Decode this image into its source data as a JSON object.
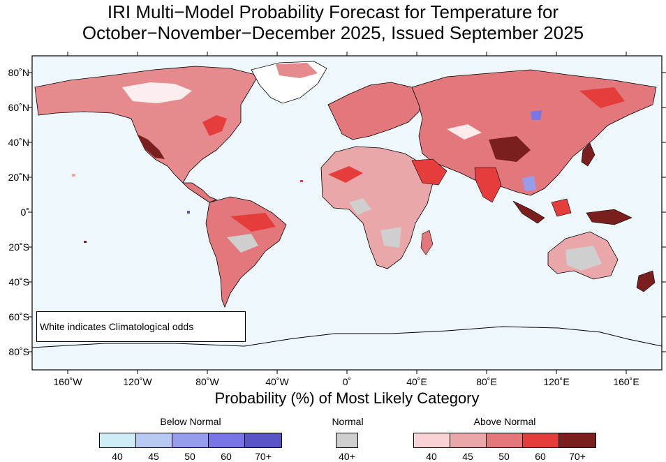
{
  "title": {
    "line1": "IRI Multi−Model Probability Forecast for Temperature for",
    "line2": "October−November−December 2025, Issued September 2025"
  },
  "axes": {
    "lat_labels": [
      "80˚N",
      "60˚N",
      "40˚N",
      "20˚N",
      "0˚",
      "20˚S",
      "40˚S",
      "60˚S",
      "80˚S"
    ],
    "lon_labels": [
      "160˚W",
      "120˚W",
      "80˚W",
      "40˚W",
      "0˚",
      "40˚E",
      "80˚E",
      "120˚E",
      "160˚E"
    ]
  },
  "note": "White indicates Climatological odds",
  "subtitle": "Probability (%) of Most Likely Category",
  "legend": {
    "below": {
      "label": "Below Normal",
      "ticks": [
        "40",
        "45",
        "50",
        "60",
        "70+"
      ],
      "colors": [
        "#cdeef7",
        "#b5c9f2",
        "#979cec",
        "#7876e4",
        "#5a55c6"
      ]
    },
    "normal": {
      "label": "Normal",
      "ticks": [
        "40+"
      ],
      "colors": [
        "#cfcfcf"
      ]
    },
    "above": {
      "label": "Above Normal",
      "ticks": [
        "40",
        "45",
        "50",
        "60",
        "70+"
      ],
      "colors": [
        "#f9d3d3",
        "#eaa7a9",
        "#e2787c",
        "#e43d3b",
        "#7b1e1e"
      ]
    }
  },
  "colors": {
    "ocean": "#eef7fc",
    "frame": "#000000"
  }
}
